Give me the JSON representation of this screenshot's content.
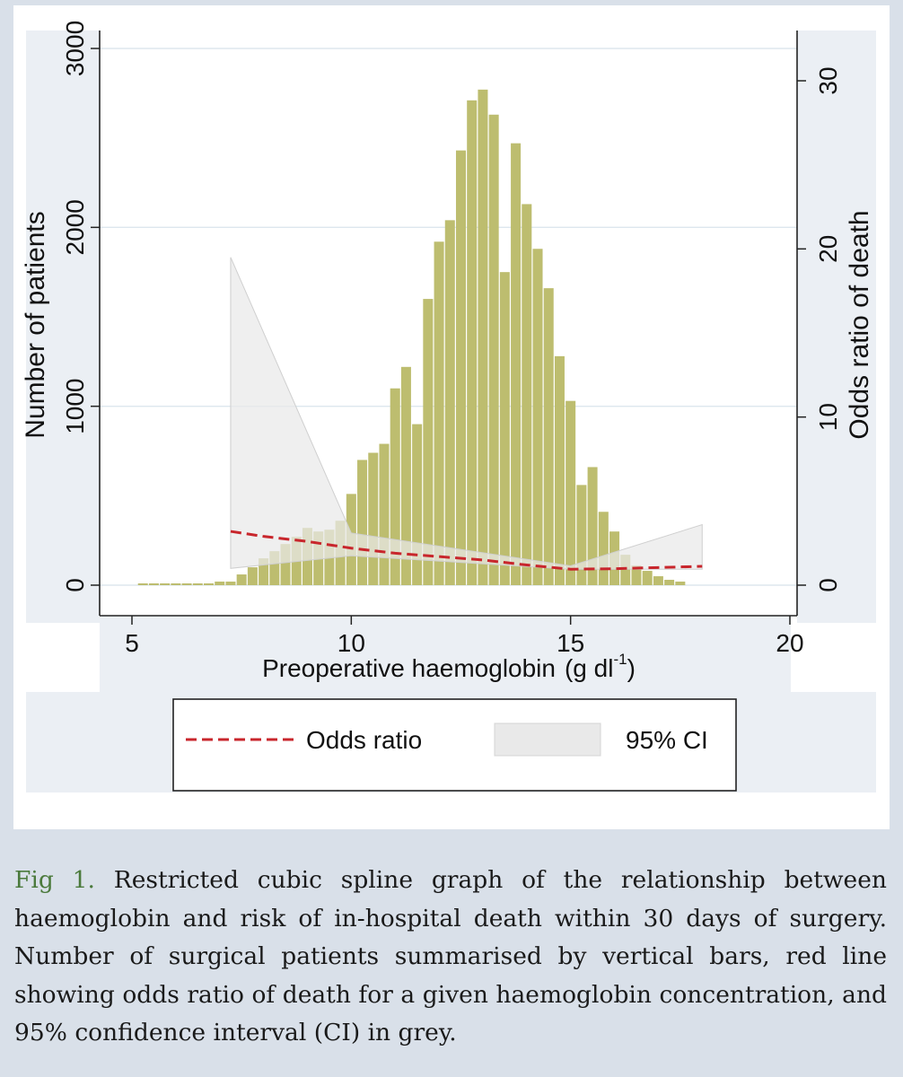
{
  "chart_data": {
    "type": "bar",
    "title": "",
    "xlabel": "Preoperative haemoglobin",
    "xlabel_unit": "(g dl",
    "xlabel_unit_sup": "-1",
    "xlabel_unit_close": ")",
    "ylabel": "Number of patients",
    "ylabel_right": "Odds ratio of death",
    "xlim": [
      4.5,
      20.5
    ],
    "ylim": [
      0,
      3000
    ],
    "ylim_right": [
      0,
      30
    ],
    "x_ticks": [
      "5",
      "10",
      "15",
      "20"
    ],
    "y_ticks": [
      "0",
      "1000",
      "2000",
      "3000"
    ],
    "y_right_ticks": [
      "0",
      "10",
      "20",
      "30"
    ],
    "grid": true,
    "legend_position": "bottom",
    "histogram": {
      "name": "Number of patients",
      "color": "#bdbd6f",
      "bin_width": 0.25,
      "bins": [
        {
          "x": 5.25,
          "count": 0
        },
        {
          "x": 5.5,
          "count": 0
        },
        {
          "x": 5.75,
          "count": 0
        },
        {
          "x": 6.0,
          "count": 5
        },
        {
          "x": 6.25,
          "count": 5
        },
        {
          "x": 6.5,
          "count": 5
        },
        {
          "x": 6.75,
          "count": 10
        },
        {
          "x": 7.0,
          "count": 20
        },
        {
          "x": 7.25,
          "count": 20
        },
        {
          "x": 7.5,
          "count": 60
        },
        {
          "x": 7.75,
          "count": 100
        },
        {
          "x": 8.0,
          "count": 150
        },
        {
          "x": 8.25,
          "count": 190
        },
        {
          "x": 8.5,
          "count": 230
        },
        {
          "x": 8.75,
          "count": 270
        },
        {
          "x": 9.0,
          "count": 320
        },
        {
          "x": 9.25,
          "count": 300
        },
        {
          "x": 9.5,
          "count": 310
        },
        {
          "x": 9.75,
          "count": 360
        },
        {
          "x": 10.0,
          "count": 510
        },
        {
          "x": 10.25,
          "count": 700
        },
        {
          "x": 10.5,
          "count": 740
        },
        {
          "x": 10.75,
          "count": 790
        },
        {
          "x": 11.0,
          "count": 1100
        },
        {
          "x": 11.25,
          "count": 1220
        },
        {
          "x": 11.5,
          "count": 900
        },
        {
          "x": 11.75,
          "count": 1600
        },
        {
          "x": 12.0,
          "count": 1920
        },
        {
          "x": 12.25,
          "count": 2040
        },
        {
          "x": 12.5,
          "count": 2430
        },
        {
          "x": 12.75,
          "count": 2710
        },
        {
          "x": 13.0,
          "count": 2770
        },
        {
          "x": 13.25,
          "count": 2630
        },
        {
          "x": 13.5,
          "count": 1750
        },
        {
          "x": 13.75,
          "count": 2470
        },
        {
          "x": 14.0,
          "count": 2130
        },
        {
          "x": 14.25,
          "count": 1880
        },
        {
          "x": 14.5,
          "count": 1660
        },
        {
          "x": 14.75,
          "count": 1280
        },
        {
          "x": 15.0,
          "count": 1030
        },
        {
          "x": 15.25,
          "count": 560
        },
        {
          "x": 15.5,
          "count": 660
        },
        {
          "x": 15.75,
          "count": 410
        },
        {
          "x": 16.0,
          "count": 300
        },
        {
          "x": 16.25,
          "count": 170
        },
        {
          "x": 16.5,
          "count": 110
        },
        {
          "x": 16.75,
          "count": 80
        },
        {
          "x": 17.0,
          "count": 50
        },
        {
          "x": 17.25,
          "count": 30
        },
        {
          "x": 17.5,
          "count": 20
        }
      ]
    },
    "odds_ratio": {
      "name": "Odds ratio",
      "color": "#c8262c",
      "x": [
        7.25,
        8,
        9,
        10,
        11,
        12,
        13,
        14,
        15,
        16,
        17,
        18
      ],
      "y": [
        3.2,
        2.9,
        2.6,
        2.2,
        1.9,
        1.7,
        1.5,
        1.2,
        0.95,
        0.98,
        1.05,
        1.12
      ]
    },
    "ci": {
      "name": "95% CI",
      "color": "#e9e9e9",
      "x": [
        7.25,
        10,
        15,
        18
      ],
      "upper": [
        19.5,
        3.1,
        1.15,
        3.6
      ],
      "lower": [
        1.0,
        1.75,
        0.95,
        0.95
      ]
    },
    "legend": [
      {
        "label": "Odds ratio",
        "type": "dashed-line"
      },
      {
        "label": "95% CI",
        "type": "area"
      }
    ]
  },
  "caption": {
    "label": "Fig 1.",
    "text": " Restricted cubic spline graph of the relationship between haemoglobin and risk of in-hospital death within 30 days of surgery. Number of surgical patients summarised by vertical bars, red line showing odds ratio of death for a given haemoglobin concentration, and 95% confidence interval (CI) in grey."
  }
}
